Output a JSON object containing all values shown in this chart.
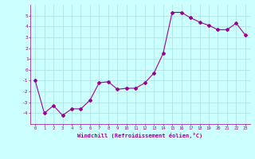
{
  "x": [
    0,
    1,
    2,
    3,
    4,
    5,
    6,
    7,
    8,
    9,
    10,
    11,
    12,
    13,
    14,
    15,
    16,
    17,
    18,
    19,
    20,
    21,
    22,
    23
  ],
  "y": [
    -1,
    -4,
    -3.3,
    -4.2,
    -3.6,
    -3.6,
    -2.8,
    -1.2,
    -1.1,
    -1.8,
    -1.7,
    -1.7,
    -1.2,
    -0.3,
    1.5,
    5.3,
    5.3,
    4.8,
    4.4,
    4.1,
    3.7,
    3.7,
    4.3,
    3.2
  ],
  "line_color": "#990099",
  "marker": "D",
  "marker_size": 2,
  "bg_color": "#ccffff",
  "grid_color": "#aadddd",
  "xlabel": "Windchill (Refroidissement éolien,°C)",
  "xlabel_color": "#990099",
  "tick_color": "#990099",
  "ylim": [
    -5,
    6
  ],
  "xlim": [
    -0.5,
    23.5
  ],
  "yticks": [
    -4,
    -3,
    -2,
    -1,
    0,
    1,
    2,
    3,
    4,
    5
  ],
  "xticks": [
    0,
    1,
    2,
    3,
    4,
    5,
    6,
    7,
    8,
    9,
    10,
    11,
    12,
    13,
    14,
    15,
    16,
    17,
    18,
    19,
    20,
    21,
    22,
    23
  ]
}
